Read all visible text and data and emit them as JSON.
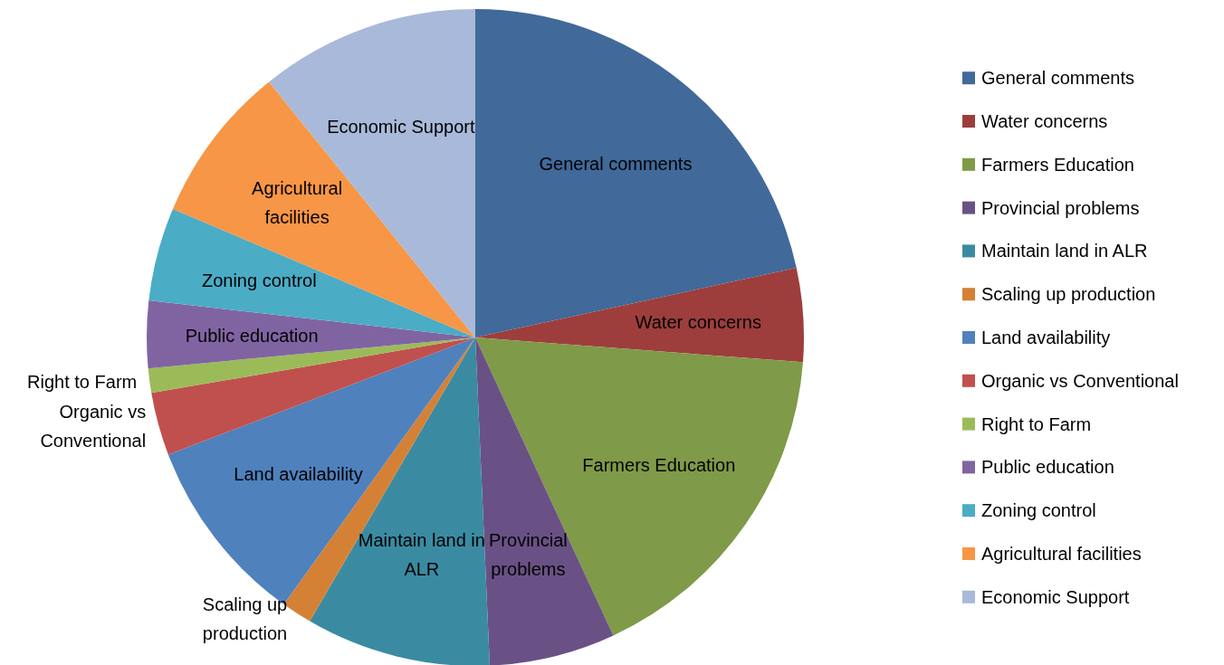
{
  "chart_data": {
    "type": "pie",
    "categories": [
      "General comments",
      "Water concerns",
      "Farmers Education",
      "Provincial problems",
      "Maintain land in ALR",
      "Scaling up production",
      "Land availability",
      "Organic vs Conventional",
      "Right to Farm",
      "Public education",
      "Zoning control",
      "Agricultural facilities",
      "Economic Support"
    ],
    "values": [
      21.6,
      4.6,
      16.9,
      6.2,
      9.1,
      1.5,
      9.3,
      3.1,
      1.2,
      3.3,
      4.6,
      7.8,
      10.8
    ],
    "colors": [
      "#41699a",
      "#9d3e3c",
      "#7f9a48",
      "#6a5185",
      "#3a8ba2",
      "#d48136",
      "#4f81bd",
      "#c0504d",
      "#9bbb59",
      "#8064a2",
      "#4bacc6",
      "#f79646",
      "#a9b9d9"
    ],
    "legend": "right"
  }
}
